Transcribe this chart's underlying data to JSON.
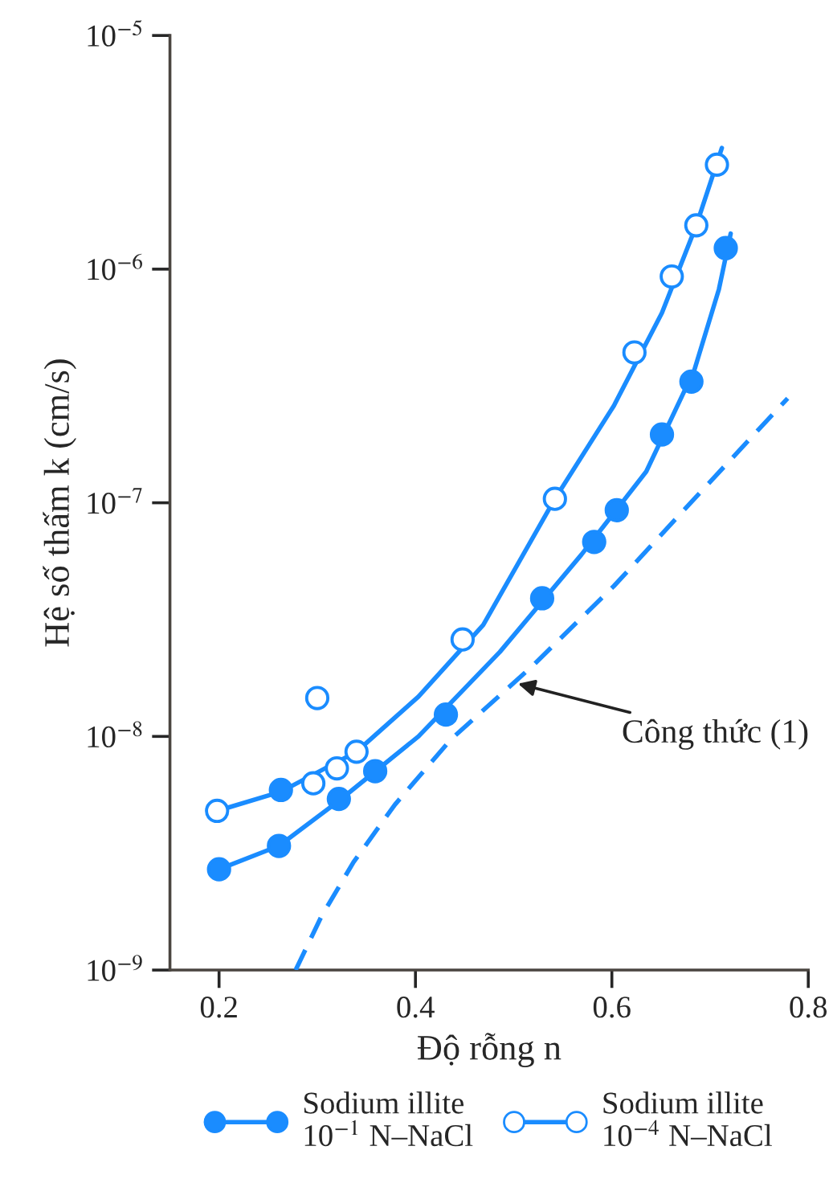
{
  "chart_data": {
    "type": "scatter",
    "xlabel": "Độ rỗng n",
    "ylabel": "Hệ số thấm k (cm/s)",
    "log": "y",
    "xlim": [
      0.15,
      0.8
    ],
    "xticks": [
      0.2,
      0.4,
      0.6,
      0.8
    ],
    "ylim": [
      1e-09,
      1e-05
    ],
    "yticks": [
      {
        "value": 1e-09,
        "label": "10$^{−9}$"
      },
      {
        "value": 1e-08,
        "label": "10$^{−8}$"
      },
      {
        "value": 1e-07,
        "label": "10$^{−7}$"
      },
      {
        "value": 1e-06,
        "label": "10$^{−6}$"
      },
      {
        "value": 1e-05,
        "label": "10$^{−5}$"
      }
    ],
    "grid": false,
    "legend": "bottom",
    "series": [
      {
        "name": "Sodium illite\n10$^{−1}$ N–NaCl",
        "marker": "circle",
        "color": "#1a8cff",
        "x": [
          0.2,
          0.261,
          0.263,
          0.322,
          0.359,
          0.431,
          0.529,
          0.582,
          0.605,
          0.651,
          0.681,
          0.716
        ],
        "values": [
          2.7e-09,
          3.4e-09,
          5.9e-09,
          5.4e-09,
          7.1e-09,
          1.24e-08,
          3.9e-08,
          6.8e-08,
          9.3e-08,
          1.96e-07,
          3.3e-07,
          1.23e-06
        ]
      },
      {
        "name": "Sodium illite\n10$^{−4}$ N–NaCl",
        "marker": "circle",
        "color": "#1a8cff",
        "colors": [
          "#ffffff",
          "#ffffff",
          "#ffffff",
          "#ffffff",
          "#ffffff",
          "#ffffff",
          "#ffffff",
          "#ffffff",
          "#ffffff",
          "#ffffff",
          "#ffffff"
        ],
        "x": [
          0.198,
          0.296,
          0.3,
          0.32,
          0.34,
          0.448,
          0.542,
          0.623,
          0.661,
          0.686,
          0.707
        ],
        "values": [
          4.8e-09,
          6.3e-09,
          1.46e-08,
          7.3e-09,
          8.6e-09,
          2.6e-08,
          1.04e-07,
          4.4e-07,
          9.3e-07,
          1.54e-06,
          2.8e-06
        ]
      },
      {
        "type": "line",
        "marker": "none",
        "color": "#1a8cff",
        "line_style": "solid",
        "x": [
          0.2,
          0.261,
          0.322,
          0.403,
          0.486,
          0.569,
          0.635,
          0.684,
          0.709,
          0.721
        ],
        "values": [
          2.7e-09,
          3.4e-09,
          5.3e-09,
          1e-08,
          2.3e-08,
          6e-08,
          1.36e-07,
          3.7e-07,
          8.2e-07,
          1.42e-06
        ]
      },
      {
        "type": "line",
        "marker": "none",
        "color": "#1a8cff",
        "line_style": "solid",
        "x": [
          0.198,
          0.263,
          0.34,
          0.403,
          0.469,
          0.542,
          0.602,
          0.651,
          0.686,
          0.712
        ],
        "values": [
          4.8e-09,
          5.8e-09,
          8.6e-09,
          1.48e-08,
          3e-08,
          1.04e-07,
          2.6e-07,
          6.5e-07,
          1.54e-06,
          3.3e-06
        ]
      },
      {
        "type": "line",
        "marker": "none",
        "color": "#1a8cff",
        "line_style": "dashed",
        "x": [
          0.278,
          0.304,
          0.337,
          0.379,
          0.436,
          0.519,
          0.602,
          0.684,
          0.779
        ],
        "values": [
          1e-09,
          1.69e-09,
          2.9e-09,
          5.1e-09,
          9.7e-09,
          2e-08,
          4.4e-08,
          1.04e-07,
          2.8e-07
        ]
      }
    ],
    "annotations": [
      {
        "text": "Công thức (1)",
        "x": 0.5,
        "y": 1.7e-08
      }
    ]
  }
}
